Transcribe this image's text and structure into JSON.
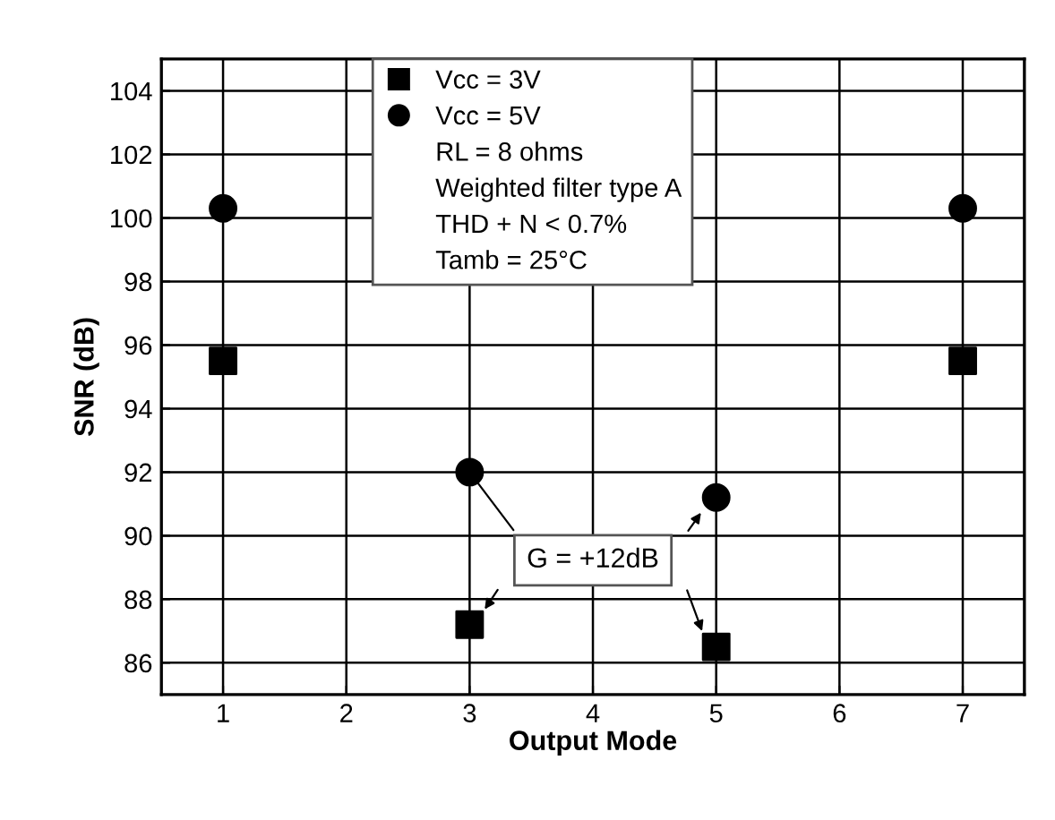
{
  "chart_data": {
    "type": "scatter",
    "xlabel": "Output Mode",
    "ylabel": "SNR (dB)",
    "x": [
      1,
      3,
      5,
      7
    ],
    "series": [
      {
        "name": "Vcc = 3V",
        "color": "#000000",
        "marker": "square",
        "values": [
          95.5,
          87.2,
          86.5,
          95.5
        ]
      },
      {
        "name": "Vcc = 5V",
        "color": "#000000",
        "marker": "circle",
        "values": [
          100.3,
          92.0,
          91.2,
          100.3
        ]
      }
    ],
    "xlim": [
      0.5,
      7.5
    ],
    "xticks": [
      1,
      2,
      3,
      4,
      5,
      6,
      7
    ],
    "ylim": [
      85,
      105
    ],
    "yticks": [
      86,
      88,
      90,
      92,
      94,
      96,
      98,
      100,
      102,
      104
    ],
    "grid": true,
    "legend": "top",
    "annotations": [
      "RL = 8 ohms",
      "Weighted filter type A",
      "THD + N < 0.7%",
      "Tamb = 25°C",
      {
        "text": "G = +12dB",
        "x": 3,
        "y": 92.0
      }
    ]
  }
}
